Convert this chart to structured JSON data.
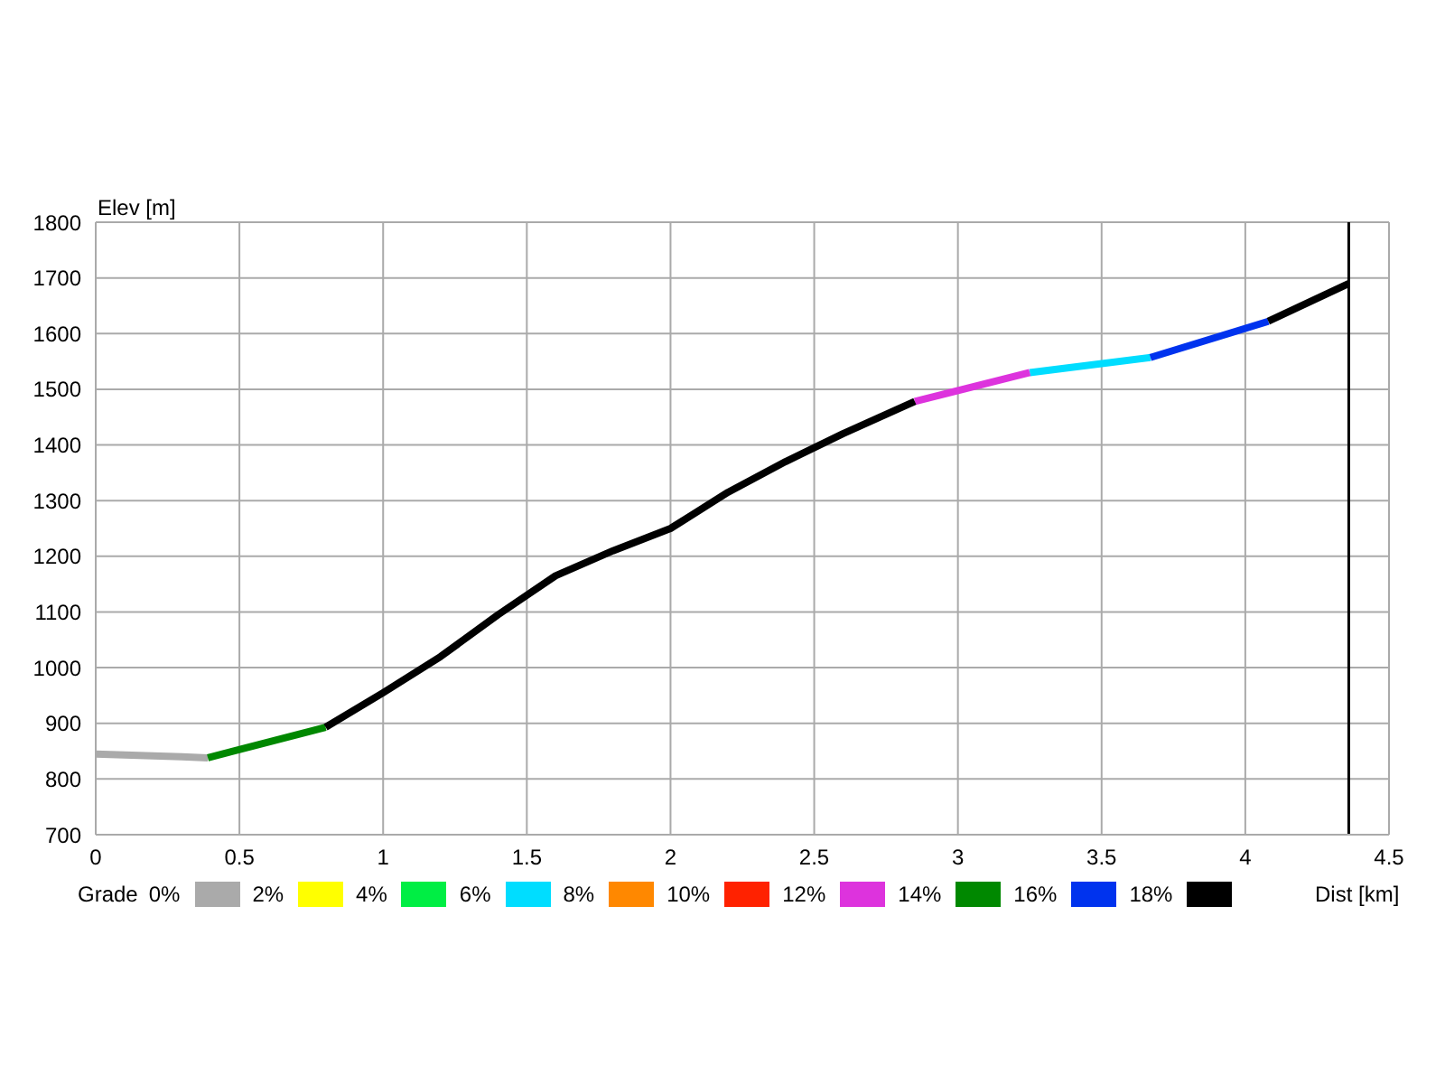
{
  "chart_data": {
    "type": "line",
    "xlabel": "Dist [km]",
    "ylabel": "Elev [m]",
    "legend_title": "Grade",
    "xlim": [
      0,
      4.5
    ],
    "xticks": [
      0,
      0.5,
      1,
      1.5,
      2,
      2.5,
      3,
      3.5,
      4,
      4.5
    ],
    "ylim": [
      700,
      1800
    ],
    "yticks": [
      700,
      800,
      900,
      1000,
      1100,
      1200,
      1300,
      1400,
      1500,
      1600,
      1700,
      1800
    ],
    "grid": true,
    "legend": "bottom",
    "line_style": "solid",
    "marker": "none",
    "ref_lines": [
      {
        "axis": "x",
        "value": 4.36,
        "color": "#000000"
      }
    ],
    "series": [
      {
        "name": "0%",
        "color": "#aaaaaa",
        "x": [
          0,
          0.1,
          0.3,
          0.39
        ],
        "values": [
          845,
          843,
          840,
          838
        ]
      },
      {
        "name": "2%",
        "color": "#ffff00"
      },
      {
        "name": "4%",
        "color": "#00ee44"
      },
      {
        "name": "6%",
        "color": "#00ddff",
        "x": [
          3.25,
          3.67
        ],
        "values": [
          1530,
          1557
        ]
      },
      {
        "name": "8%",
        "color": "#ff8800"
      },
      {
        "name": "10%",
        "color": "#ff2200"
      },
      {
        "name": "12%",
        "color": "#dd33dd",
        "x": [
          2.85,
          3.25
        ],
        "values": [
          1478,
          1530
        ]
      },
      {
        "name": "14%",
        "color": "#008800",
        "x": [
          0.39,
          0.8
        ],
        "values": [
          838,
          893
        ]
      },
      {
        "name": "16%",
        "color": "#0033ee",
        "x": [
          3.67,
          4.08
        ],
        "values": [
          1557,
          1622
        ]
      },
      {
        "name": "18%",
        "color": "#000000",
        "x": [
          0.8,
          1.0,
          1.2,
          1.4,
          1.6,
          1.8,
          2.0,
          2.2,
          2.4,
          2.6,
          2.85,
          3.5,
          4.08,
          4.36
        ],
        "values": [
          893,
          955,
          1020,
          1095,
          1165,
          1210,
          1250,
          1315,
          1370,
          1420,
          1478,
          null,
          1622,
          1690
        ]
      }
    ]
  }
}
